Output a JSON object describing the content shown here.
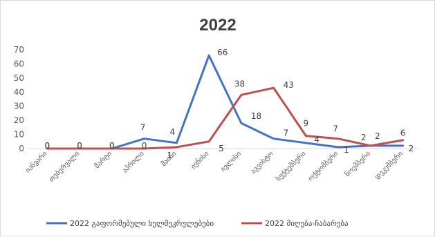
{
  "chart_data": {
    "type": "line",
    "title": "2022",
    "xlabel": "",
    "ylabel": "",
    "ylim": [
      0,
      70
    ],
    "yticks": [
      0,
      10,
      20,
      30,
      40,
      50,
      60,
      70
    ],
    "grid": false,
    "legend_position": "bottom",
    "categories": [
      "იანვარი",
      "თებერვალი",
      "მარტი",
      "აპრილი",
      "მაისი",
      "ივნისი",
      "ივლისი",
      "აგვისტო",
      "სექტემბერი",
      "ოქტომბერი",
      "ნოემბერი",
      "დეკემბერი"
    ],
    "series": [
      {
        "name": "2022 გაფორმებული ხელშეკრულებები",
        "color": "#4472C4",
        "values": [
          0,
          0,
          0,
          7,
          4,
          66,
          18,
          7,
          4,
          1,
          2,
          2
        ],
        "labels": [
          "0",
          "0",
          "0",
          "7",
          "4",
          "66",
          "18",
          "7",
          "4",
          "1",
          "2",
          "2"
        ]
      },
      {
        "name": "2022 მიღება-ჩაბარება",
        "color": "#C0504D",
        "values": [
          0,
          0,
          0,
          0,
          1,
          5,
          38,
          43,
          9,
          7,
          2,
          6
        ],
        "labels": [
          "0",
          "0",
          "0",
          "0",
          "1",
          "5",
          "38",
          "43",
          "9",
          "7",
          "2",
          "6"
        ]
      }
    ]
  }
}
